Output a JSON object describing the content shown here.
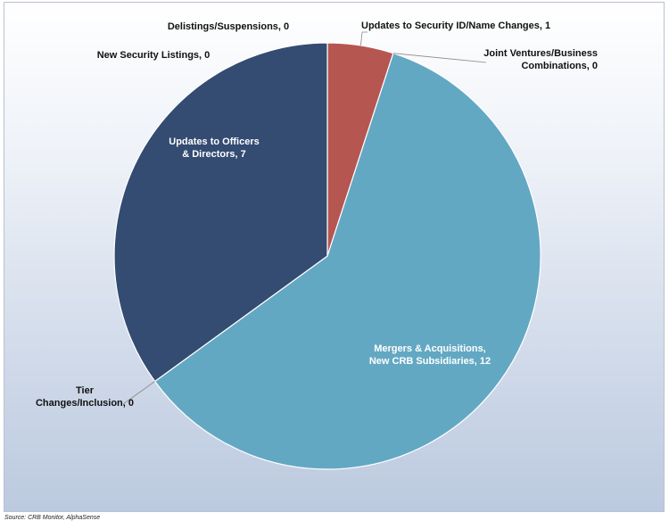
{
  "chart_data": {
    "type": "pie",
    "title": "",
    "slices": [
      {
        "label": "Updates to Security ID/Name Changes",
        "value": 1,
        "color": "#b65651"
      },
      {
        "label": "Joint Ventures/Business Combinations",
        "value": 0,
        "color": "#8fb1c9"
      },
      {
        "label": "Mergers & Acquisitions, New CRB Subsidiaries",
        "value": 12,
        "color": "#63a8c3"
      },
      {
        "label": "Tier Changes/Inclusion",
        "value": 0,
        "color": "#7a8fa8"
      },
      {
        "label": "Updates to Officers & Directors",
        "value": 7,
        "color": "#344b72"
      },
      {
        "label": "New Security Listings",
        "value": 0,
        "color": "#556b8f"
      },
      {
        "label": "Delistings/Suspensions",
        "value": 0,
        "color": "#6b7f9c"
      }
    ],
    "data_labels": [
      "Updates to Security ID/Name Changes, 1",
      "Joint Ventures/Business Combinations, 0",
      "Mergers & Acquisitions, New CRB Subsidiaries, 12",
      "Tier Changes/Inclusion, 0",
      "Updates to Officers & Directors, 7",
      "New Security Listings, 0",
      "Delistings/Suspensions, 0"
    ]
  },
  "source": "Source: CRB Monitor, AlphaSense"
}
